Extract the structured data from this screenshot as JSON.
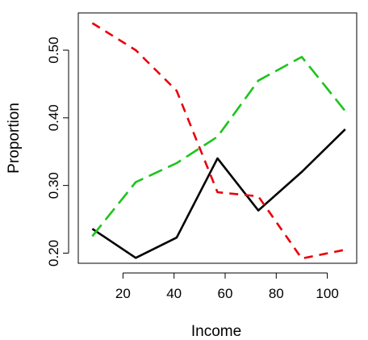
{
  "chart_data": {
    "type": "line",
    "xlabel": "Income",
    "ylabel": "Proportion",
    "xlim": [
      2.5,
      111.5
    ],
    "ylim": [
      0.185,
      0.555
    ],
    "xticks": [
      20,
      40,
      60,
      80,
      100
    ],
    "yticks": [
      0.2,
      0.3,
      0.4,
      0.5
    ],
    "ytick_labels": [
      "0.20",
      "0.30",
      "0.40",
      "0.50"
    ],
    "x": [
      8,
      25,
      41,
      57,
      73,
      90,
      107
    ],
    "grid": false,
    "legend": "none",
    "series": [
      {
        "values": [
          0.236,
          0.193,
          0.223,
          0.34,
          0.263,
          0.32,
          0.383
        ],
        "color": "#000000",
        "style": "solid"
      },
      {
        "values": [
          0.54,
          0.5,
          0.44,
          0.29,
          0.284,
          0.192,
          0.205
        ],
        "color": "#e8000b",
        "style": "dashed"
      },
      {
        "values": [
          0.225,
          0.305,
          0.333,
          0.372,
          0.455,
          0.49,
          0.41
        ],
        "color": "#1cc41c",
        "style": "longdash"
      }
    ]
  }
}
